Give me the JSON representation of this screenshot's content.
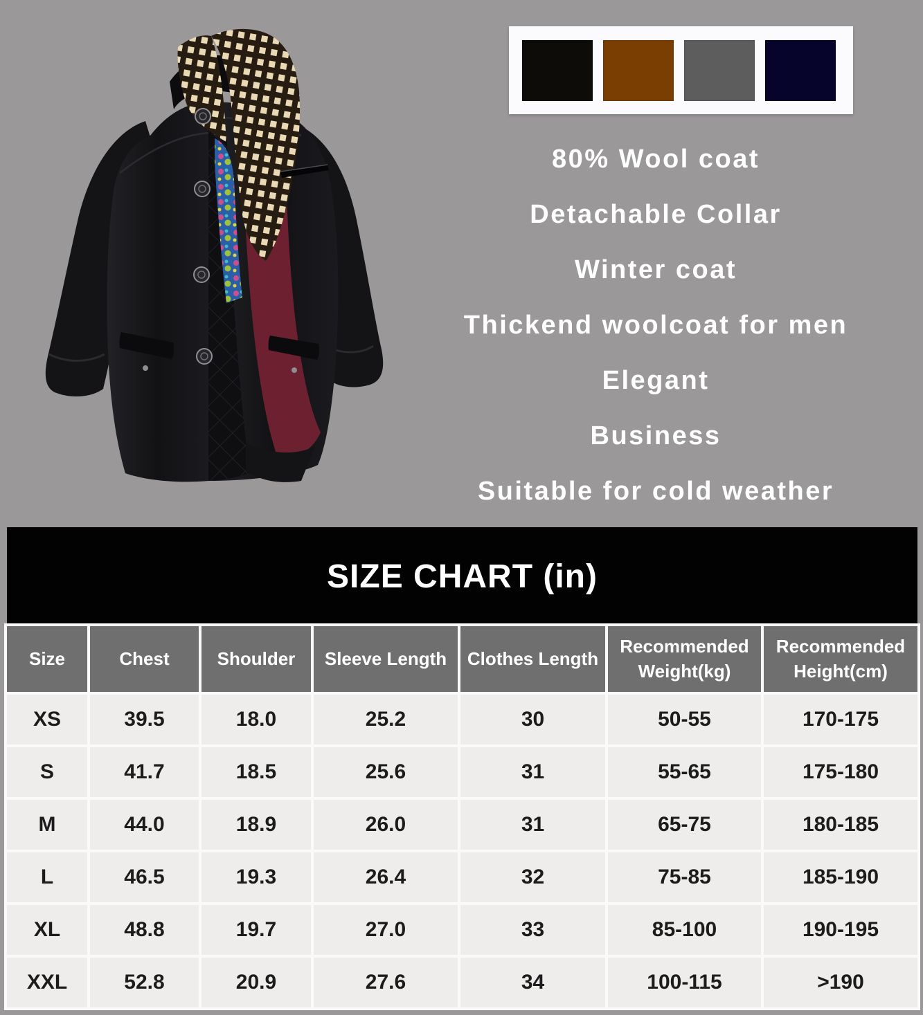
{
  "page": {
    "background": "#9a9899"
  },
  "photo": {
    "description": "black wool coat with checkered scarf collar and burgundy trim"
  },
  "swatches": {
    "background": "#fbfbfd",
    "colors": [
      {
        "name": "black",
        "hex": "#0e0c08"
      },
      {
        "name": "brown",
        "hex": "#7a3e02"
      },
      {
        "name": "gray",
        "hex": "#5d5d5d"
      },
      {
        "name": "navy",
        "hex": "#06042a"
      }
    ]
  },
  "features": {
    "text_color": "#ffffff",
    "items": [
      "80% Wool coat",
      "Detachable Collar",
      "Winter coat",
      "Thickend woolcoat for men",
      "Elegant",
      "Business",
      "Suitable for cold weather"
    ]
  },
  "size_chart": {
    "title": "SIZE CHART (in)",
    "band_background": "#020202",
    "header_background": "#6f6f6f",
    "row_background": "#eeedec",
    "columns": [
      "Size",
      "Chest",
      "Shoulder",
      "Sleeve Length",
      "Clothes Length",
      "Recommended Weight(kg)",
      "Recommended Height(cm)"
    ],
    "rows": [
      [
        "XS",
        "39.5",
        "18.0",
        "25.2",
        "30",
        "50-55",
        "170-175"
      ],
      [
        "S",
        "41.7",
        "18.5",
        "25.6",
        "31",
        "55-65",
        "175-180"
      ],
      [
        "M",
        "44.0",
        "18.9",
        "26.0",
        "31",
        "65-75",
        "180-185"
      ],
      [
        "L",
        "46.5",
        "19.3",
        "26.4",
        "32",
        "75-85",
        "185-190"
      ],
      [
        "XL",
        "48.8",
        "19.7",
        "27.0",
        "33",
        "85-100",
        "190-195"
      ],
      [
        "XXL",
        "52.8",
        "20.9",
        "27.6",
        "34",
        "100-115",
        ">190"
      ]
    ]
  },
  "chart_data": {
    "type": "table",
    "title": "SIZE CHART (in)",
    "columns": [
      "Size",
      "Chest",
      "Shoulder",
      "Sleeve Length",
      "Clothes Length",
      "Recommended Weight(kg)",
      "Recommended Height(cm)"
    ],
    "rows": [
      [
        "XS",
        "39.5",
        "18.0",
        "25.2",
        "30",
        "50-55",
        "170-175"
      ],
      [
        "S",
        "41.7",
        "18.5",
        "25.6",
        "31",
        "55-65",
        "175-180"
      ],
      [
        "M",
        "44.0",
        "18.9",
        "26.0",
        "31",
        "65-75",
        "180-185"
      ],
      [
        "L",
        "46.5",
        "19.3",
        "26.4",
        "32",
        "75-85",
        "185-190"
      ],
      [
        "XL",
        "48.8",
        "19.7",
        "27.0",
        "33",
        "85-100",
        "190-195"
      ],
      [
        "XXL",
        "52.8",
        "20.9",
        "27.6",
        "34",
        "100-115",
        ">190"
      ]
    ]
  }
}
